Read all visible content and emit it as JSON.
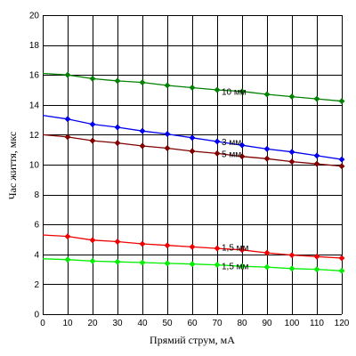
{
  "chart_data": {
    "type": "line",
    "title": "",
    "xlabel": "Прямий струм, мА",
    "ylabel": "Час життя, мкс",
    "xlim": [
      0,
      120
    ],
    "ylim": [
      0,
      20
    ],
    "x_ticks": [
      0,
      10,
      20,
      30,
      40,
      50,
      60,
      70,
      80,
      90,
      100,
      110,
      120
    ],
    "y_ticks": [
      0,
      2,
      4,
      6,
      8,
      10,
      12,
      14,
      16,
      18,
      20
    ],
    "grid": true,
    "legend": "none",
    "series": [
      {
        "name": "10 мм",
        "color": "#008000",
        "line_start": [
          0,
          16.1
        ],
        "x": [
          10,
          20,
          30,
          40,
          50,
          60,
          70,
          80,
          90,
          100,
          110,
          120
        ],
        "y": [
          16.0,
          15.75,
          15.6,
          15.5,
          15.3,
          15.15,
          15.0,
          14.9,
          14.7,
          14.55,
          14.4,
          14.25
        ],
        "label_at": [
          70,
          14.9
        ]
      },
      {
        "name": "3 мм",
        "color": "#0000ee",
        "line_start": [
          0,
          13.3
        ],
        "x": [
          10,
          20,
          30,
          40,
          50,
          60,
          70,
          80,
          90,
          100,
          110,
          120
        ],
        "y": [
          13.05,
          12.7,
          12.5,
          12.25,
          12.05,
          11.8,
          11.55,
          11.3,
          11.05,
          10.85,
          10.6,
          10.35
        ],
        "label_at": [
          70,
          11.55
        ]
      },
      {
        "name": "5 мм",
        "color": "#800000",
        "line_start": [
          0,
          12.0
        ],
        "x": [
          10,
          20,
          30,
          40,
          50,
          60,
          70,
          80,
          90,
          100,
          110,
          120
        ],
        "y": [
          11.85,
          11.6,
          11.45,
          11.25,
          11.1,
          10.9,
          10.75,
          10.55,
          10.4,
          10.2,
          10.05,
          9.9
        ],
        "label_at": [
          70,
          10.75
        ]
      },
      {
        "name": "1,5 мм",
        "color": "#ee0000",
        "line_start": [
          0,
          5.3
        ],
        "x": [
          10,
          20,
          30,
          40,
          50,
          60,
          70,
          80,
          90,
          100,
          110,
          120
        ],
        "y": [
          5.2,
          4.95,
          4.85,
          4.7,
          4.6,
          4.5,
          4.4,
          4.3,
          4.1,
          3.95,
          3.85,
          3.75
        ],
        "label_at": [
          70,
          4.5
        ]
      },
      {
        "name": "1,5 мм",
        "color": "#00ee00",
        "line_start": [
          0,
          3.7
        ],
        "x": [
          10,
          20,
          30,
          40,
          50,
          60,
          70,
          80,
          90,
          100,
          110,
          120
        ],
        "y": [
          3.65,
          3.55,
          3.5,
          3.45,
          3.4,
          3.35,
          3.3,
          3.2,
          3.15,
          3.05,
          3.0,
          2.9
        ],
        "label_at": [
          70,
          3.25
        ]
      }
    ]
  }
}
